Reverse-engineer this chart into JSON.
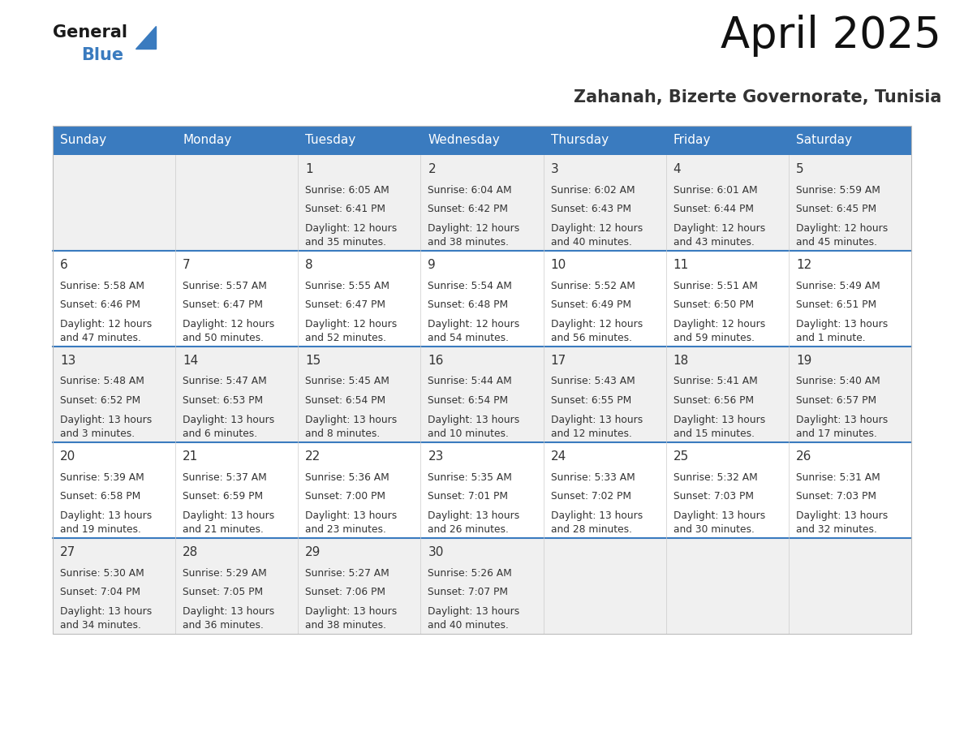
{
  "title": "April 2025",
  "subtitle": "Zahanah, Bizerte Governorate, Tunisia",
  "header_bg_color": "#3a7bbf",
  "header_text_color": "#ffffff",
  "cell_bg_color_odd": "#f0f0f0",
  "cell_bg_color_even": "#ffffff",
  "divider_color": "#3a7bbf",
  "text_color": "#333333",
  "days_of_week": [
    "Sunday",
    "Monday",
    "Tuesday",
    "Wednesday",
    "Thursday",
    "Friday",
    "Saturday"
  ],
  "fig_width": 11.88,
  "fig_height": 9.18,
  "weeks": [
    [
      {
        "day": "",
        "sunrise": "",
        "sunset": "",
        "daylight": ""
      },
      {
        "day": "",
        "sunrise": "",
        "sunset": "",
        "daylight": ""
      },
      {
        "day": "1",
        "sunrise": "Sunrise: 6:05 AM",
        "sunset": "Sunset: 6:41 PM",
        "daylight": "Daylight: 12 hours\nand 35 minutes."
      },
      {
        "day": "2",
        "sunrise": "Sunrise: 6:04 AM",
        "sunset": "Sunset: 6:42 PM",
        "daylight": "Daylight: 12 hours\nand 38 minutes."
      },
      {
        "day": "3",
        "sunrise": "Sunrise: 6:02 AM",
        "sunset": "Sunset: 6:43 PM",
        "daylight": "Daylight: 12 hours\nand 40 minutes."
      },
      {
        "day": "4",
        "sunrise": "Sunrise: 6:01 AM",
        "sunset": "Sunset: 6:44 PM",
        "daylight": "Daylight: 12 hours\nand 43 minutes."
      },
      {
        "day": "5",
        "sunrise": "Sunrise: 5:59 AM",
        "sunset": "Sunset: 6:45 PM",
        "daylight": "Daylight: 12 hours\nand 45 minutes."
      }
    ],
    [
      {
        "day": "6",
        "sunrise": "Sunrise: 5:58 AM",
        "sunset": "Sunset: 6:46 PM",
        "daylight": "Daylight: 12 hours\nand 47 minutes."
      },
      {
        "day": "7",
        "sunrise": "Sunrise: 5:57 AM",
        "sunset": "Sunset: 6:47 PM",
        "daylight": "Daylight: 12 hours\nand 50 minutes."
      },
      {
        "day": "8",
        "sunrise": "Sunrise: 5:55 AM",
        "sunset": "Sunset: 6:47 PM",
        "daylight": "Daylight: 12 hours\nand 52 minutes."
      },
      {
        "day": "9",
        "sunrise": "Sunrise: 5:54 AM",
        "sunset": "Sunset: 6:48 PM",
        "daylight": "Daylight: 12 hours\nand 54 minutes."
      },
      {
        "day": "10",
        "sunrise": "Sunrise: 5:52 AM",
        "sunset": "Sunset: 6:49 PM",
        "daylight": "Daylight: 12 hours\nand 56 minutes."
      },
      {
        "day": "11",
        "sunrise": "Sunrise: 5:51 AM",
        "sunset": "Sunset: 6:50 PM",
        "daylight": "Daylight: 12 hours\nand 59 minutes."
      },
      {
        "day": "12",
        "sunrise": "Sunrise: 5:49 AM",
        "sunset": "Sunset: 6:51 PM",
        "daylight": "Daylight: 13 hours\nand 1 minute."
      }
    ],
    [
      {
        "day": "13",
        "sunrise": "Sunrise: 5:48 AM",
        "sunset": "Sunset: 6:52 PM",
        "daylight": "Daylight: 13 hours\nand 3 minutes."
      },
      {
        "day": "14",
        "sunrise": "Sunrise: 5:47 AM",
        "sunset": "Sunset: 6:53 PM",
        "daylight": "Daylight: 13 hours\nand 6 minutes."
      },
      {
        "day": "15",
        "sunrise": "Sunrise: 5:45 AM",
        "sunset": "Sunset: 6:54 PM",
        "daylight": "Daylight: 13 hours\nand 8 minutes."
      },
      {
        "day": "16",
        "sunrise": "Sunrise: 5:44 AM",
        "sunset": "Sunset: 6:54 PM",
        "daylight": "Daylight: 13 hours\nand 10 minutes."
      },
      {
        "day": "17",
        "sunrise": "Sunrise: 5:43 AM",
        "sunset": "Sunset: 6:55 PM",
        "daylight": "Daylight: 13 hours\nand 12 minutes."
      },
      {
        "day": "18",
        "sunrise": "Sunrise: 5:41 AM",
        "sunset": "Sunset: 6:56 PM",
        "daylight": "Daylight: 13 hours\nand 15 minutes."
      },
      {
        "day": "19",
        "sunrise": "Sunrise: 5:40 AM",
        "sunset": "Sunset: 6:57 PM",
        "daylight": "Daylight: 13 hours\nand 17 minutes."
      }
    ],
    [
      {
        "day": "20",
        "sunrise": "Sunrise: 5:39 AM",
        "sunset": "Sunset: 6:58 PM",
        "daylight": "Daylight: 13 hours\nand 19 minutes."
      },
      {
        "day": "21",
        "sunrise": "Sunrise: 5:37 AM",
        "sunset": "Sunset: 6:59 PM",
        "daylight": "Daylight: 13 hours\nand 21 minutes."
      },
      {
        "day": "22",
        "sunrise": "Sunrise: 5:36 AM",
        "sunset": "Sunset: 7:00 PM",
        "daylight": "Daylight: 13 hours\nand 23 minutes."
      },
      {
        "day": "23",
        "sunrise": "Sunrise: 5:35 AM",
        "sunset": "Sunset: 7:01 PM",
        "daylight": "Daylight: 13 hours\nand 26 minutes."
      },
      {
        "day": "24",
        "sunrise": "Sunrise: 5:33 AM",
        "sunset": "Sunset: 7:02 PM",
        "daylight": "Daylight: 13 hours\nand 28 minutes."
      },
      {
        "day": "25",
        "sunrise": "Sunrise: 5:32 AM",
        "sunset": "Sunset: 7:03 PM",
        "daylight": "Daylight: 13 hours\nand 30 minutes."
      },
      {
        "day": "26",
        "sunrise": "Sunrise: 5:31 AM",
        "sunset": "Sunset: 7:03 PM",
        "daylight": "Daylight: 13 hours\nand 32 minutes."
      }
    ],
    [
      {
        "day": "27",
        "sunrise": "Sunrise: 5:30 AM",
        "sunset": "Sunset: 7:04 PM",
        "daylight": "Daylight: 13 hours\nand 34 minutes."
      },
      {
        "day": "28",
        "sunrise": "Sunrise: 5:29 AM",
        "sunset": "Sunset: 7:05 PM",
        "daylight": "Daylight: 13 hours\nand 36 minutes."
      },
      {
        "day": "29",
        "sunrise": "Sunrise: 5:27 AM",
        "sunset": "Sunset: 7:06 PM",
        "daylight": "Daylight: 13 hours\nand 38 minutes."
      },
      {
        "day": "30",
        "sunrise": "Sunrise: 5:26 AM",
        "sunset": "Sunset: 7:07 PM",
        "daylight": "Daylight: 13 hours\nand 40 minutes."
      },
      {
        "day": "",
        "sunrise": "",
        "sunset": "",
        "daylight": ""
      },
      {
        "day": "",
        "sunrise": "",
        "sunset": "",
        "daylight": ""
      },
      {
        "day": "",
        "sunrise": "",
        "sunset": "",
        "daylight": ""
      }
    ]
  ]
}
